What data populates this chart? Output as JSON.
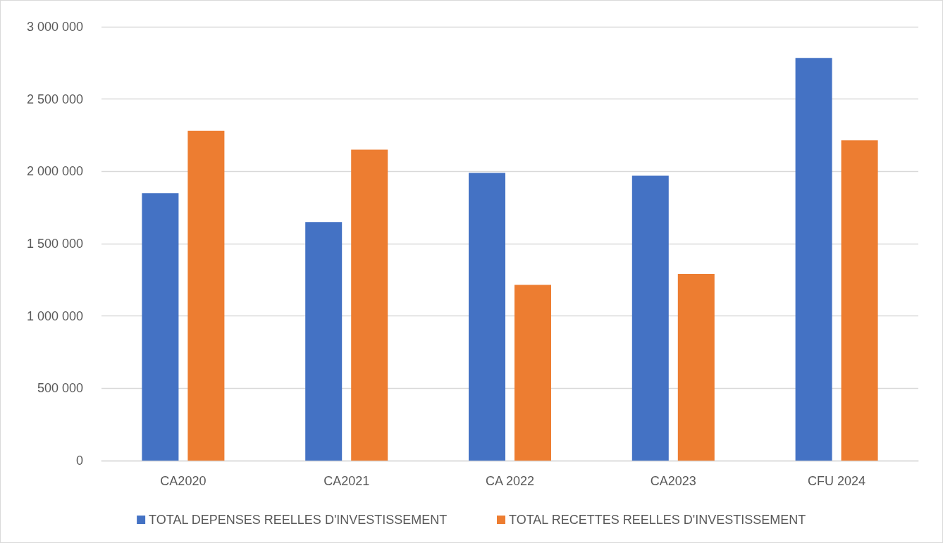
{
  "chart_data": {
    "type": "bar",
    "categories": [
      "CA2020",
      "CA2021",
      "CA 2022",
      "CA2023",
      "CFU 2024"
    ],
    "series": [
      {
        "name": "TOTAL DEPENSES REELLES D'INVESTISSEMENT",
        "color": "#4472c4",
        "values": [
          1850000,
          1650000,
          1990000,
          1970000,
          2785000
        ]
      },
      {
        "name": "TOTAL RECETTES REELLES D'INVESTISSEMENT",
        "color": "#ed7d31",
        "values": [
          2280000,
          2150000,
          1215000,
          1290000,
          2215000
        ]
      }
    ],
    "ylim": [
      0,
      3000000
    ],
    "yticks": [
      0,
      {
        "value": 500000,
        "label": "500 000"
      },
      {
        "value": 1000000,
        "label": "1 000 000"
      },
      {
        "value": 1500000,
        "label": "1 500 000"
      },
      {
        "value": 2000000,
        "label": "2 000 000"
      },
      {
        "value": 2500000,
        "label": "2 500 000"
      },
      {
        "value": 3000000,
        "label": "3 000 000"
      }
    ],
    "grid": "y",
    "legend": "bottom"
  }
}
